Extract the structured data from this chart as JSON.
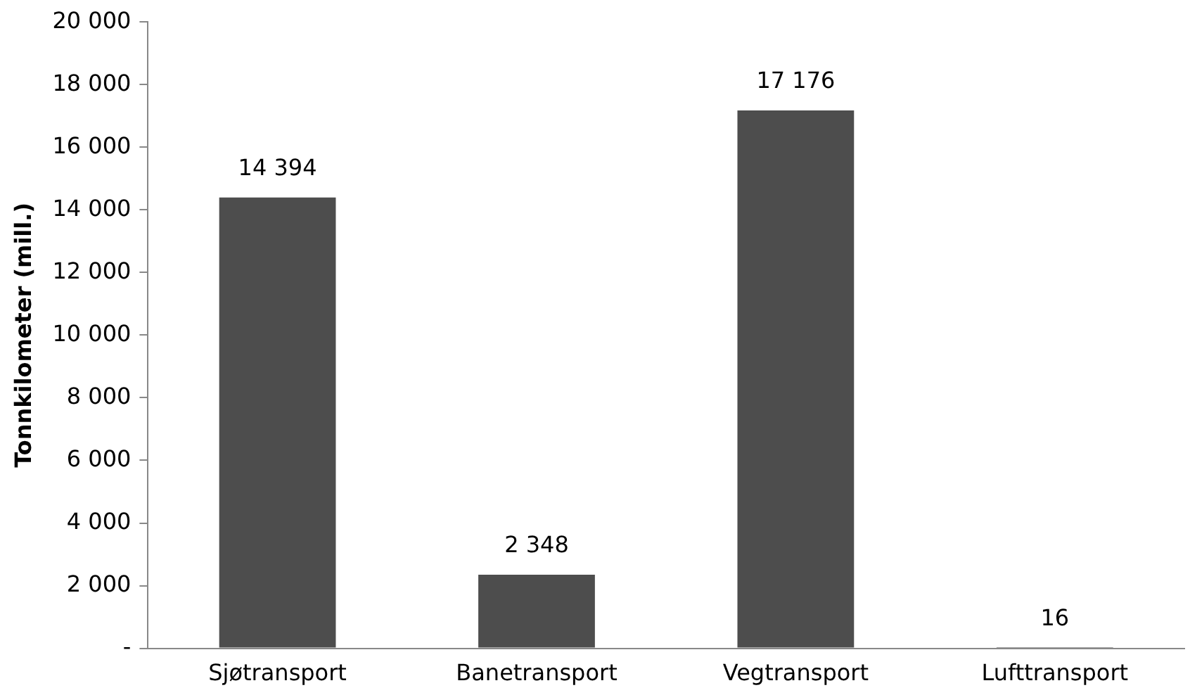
{
  "chart_data": {
    "type": "bar",
    "ylabel": "Tonnkilometer (mill.)",
    "categories": [
      "Sjøtransport",
      "Banetransport",
      "Vegtransport",
      "Lufttransport"
    ],
    "values": [
      14394,
      2348,
      17176,
      16
    ],
    "value_labels": [
      "14 394",
      "2 348",
      "17 176",
      "16"
    ],
    "color": "#4d4d4d",
    "ylim": [
      0,
      20000
    ],
    "yticks": [
      {
        "value": 0,
        "label": "-"
      },
      {
        "value": 2000,
        "label": "2 000"
      },
      {
        "value": 4000,
        "label": "4 000"
      },
      {
        "value": 6000,
        "label": "6 000"
      },
      {
        "value": 8000,
        "label": "8 000"
      },
      {
        "value": 10000,
        "label": "10 000"
      },
      {
        "value": 12000,
        "label": "12 000"
      },
      {
        "value": 14000,
        "label": "14 000"
      },
      {
        "value": 16000,
        "label": "16 000"
      },
      {
        "value": 18000,
        "label": "18 000"
      },
      {
        "value": 20000,
        "label": "20 000"
      }
    ],
    "grid": false,
    "legend": false
  }
}
